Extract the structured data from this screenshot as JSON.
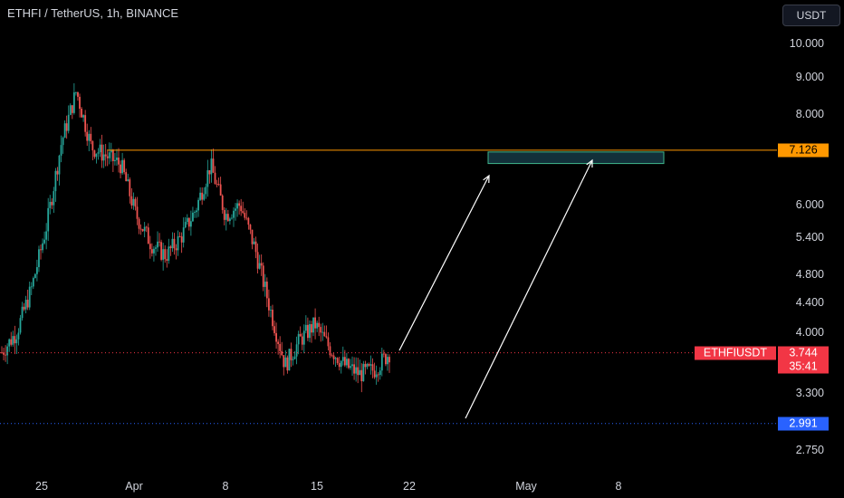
{
  "header": {
    "title": "ETHFI / TetherUS, 1h, BINANCE",
    "currency_button": "USDT"
  },
  "colors": {
    "background": "#000000",
    "candle_up": "#26a69a",
    "candle_down": "#ef5350",
    "resistance_line": "#ff9800",
    "target_box_border": "#3fb68b",
    "current_price": "#f23645",
    "support": "#2962ff",
    "arrow": "#ffffff"
  },
  "chart_data": {
    "type": "candlestick",
    "symbol": "ETHFIUSDT",
    "y_axis": {
      "scale": "log",
      "ticks": [
        "10.000",
        "9.000",
        "8.000",
        "6.000",
        "5.400",
        "4.800",
        "4.400",
        "4.000",
        "3.300",
        "2.750"
      ]
    },
    "x_axis": {
      "ticks": [
        "25",
        "Apr",
        "8",
        "15",
        "22",
        "May",
        "8"
      ]
    },
    "price_markers": {
      "resistance": {
        "value": 7.126,
        "label": "7.126"
      },
      "current": {
        "value": 3.744,
        "label": "3.744",
        "countdown": "35:41",
        "symbol_label": "ETHFIUSDT"
      },
      "support": {
        "value": 2.991,
        "label": "2.991"
      }
    },
    "target_zone": {
      "low": 6.85,
      "high": 7.126
    },
    "candles_approx_path": [
      {
        "t": "Mar 21",
        "close": 3.75
      },
      {
        "t": "Mar 23",
        "close": 4.0
      },
      {
        "t": "Mar 25",
        "close": 4.6
      },
      {
        "t": "Mar 26",
        "close": 5.6
      },
      {
        "t": "Mar 27",
        "close": 7.3
      },
      {
        "t": "Mar 28",
        "close": 8.6
      },
      {
        "t": "Mar 29",
        "close": 7.2
      },
      {
        "t": "Mar 30",
        "close": 7.0
      },
      {
        "t": "Apr 1",
        "close": 6.8
      },
      {
        "t": "Apr 2",
        "close": 5.8
      },
      {
        "t": "Apr 3",
        "close": 5.3
      },
      {
        "t": "Apr 4",
        "close": 5.1
      },
      {
        "t": "Apr 5",
        "close": 5.4
      },
      {
        "t": "Apr 7",
        "close": 5.9
      },
      {
        "t": "Apr 8",
        "close": 6.8
      },
      {
        "t": "Apr 9",
        "close": 5.8
      },
      {
        "t": "Apr 10",
        "close": 6.0
      },
      {
        "t": "Apr 11",
        "close": 5.2
      },
      {
        "t": "Apr 12",
        "close": 4.3
      },
      {
        "t": "Apr 13",
        "close": 3.6
      },
      {
        "t": "Apr 14",
        "close": 3.9
      },
      {
        "t": "Apr 15",
        "close": 4.1
      },
      {
        "t": "Apr 16",
        "close": 3.8
      },
      {
        "t": "Apr 17",
        "close": 3.6
      },
      {
        "t": "Apr 18",
        "close": 3.5
      },
      {
        "t": "Apr 19",
        "close": 3.55
      },
      {
        "t": "Apr 20",
        "close": 3.744
      }
    ]
  }
}
